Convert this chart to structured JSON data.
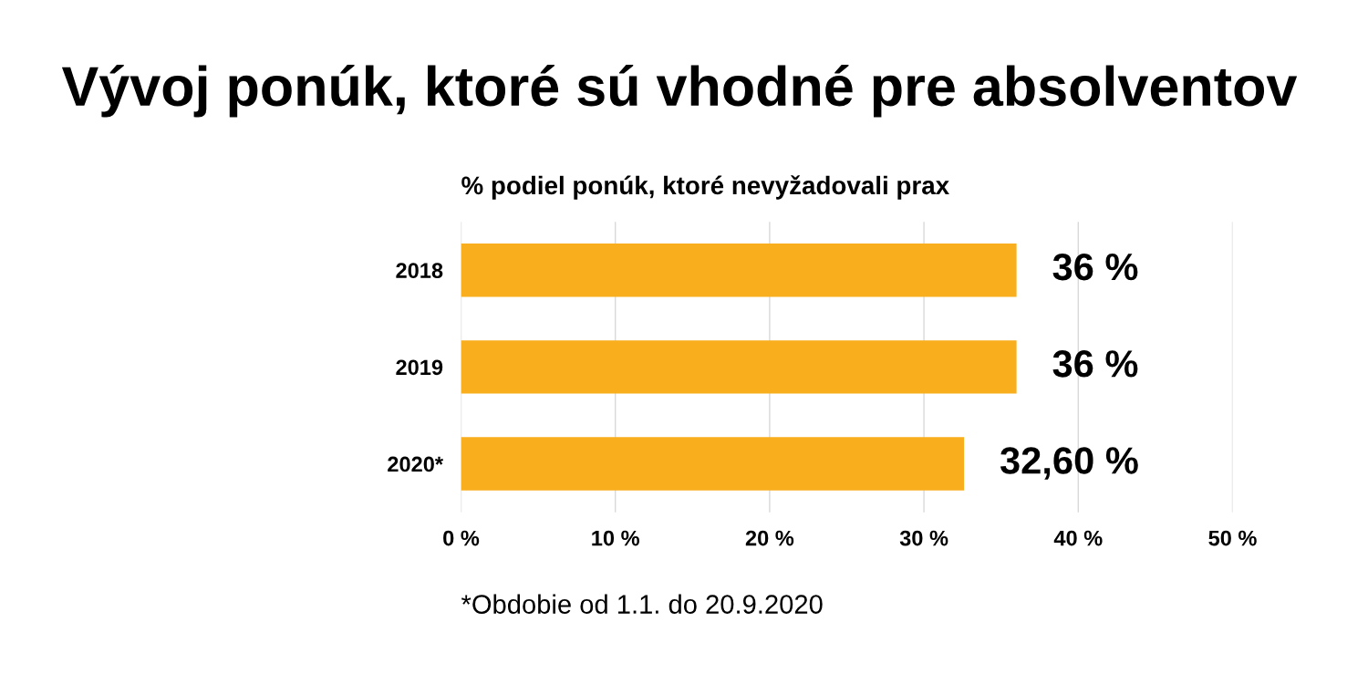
{
  "chart_data": {
    "type": "bar",
    "orientation": "horizontal",
    "title": "Vývoj ponúk, ktoré sú vhodné pre absolventov",
    "subtitle": "% podiel ponúk, ktoré nevyžadovali prax",
    "categories": [
      "2018",
      "2019",
      "2020*"
    ],
    "values": [
      36,
      36,
      32.6
    ],
    "value_labels": [
      "36 %",
      "36 %",
      "32,60 %"
    ],
    "color": "#f8ae1d",
    "xlim": [
      0,
      50
    ],
    "xticks": [
      {
        "value": 0,
        "label": "0 %"
      },
      {
        "value": 10,
        "label": "10 %"
      },
      {
        "value": 20,
        "label": "20 %"
      },
      {
        "value": 30,
        "label": "30 %"
      },
      {
        "value": 40,
        "label": "40 %"
      },
      {
        "value": 50,
        "label": "50 %"
      }
    ],
    "grid": "x",
    "annotations": [
      "*Obdobie od 1.1. do 20.9.2020"
    ]
  }
}
